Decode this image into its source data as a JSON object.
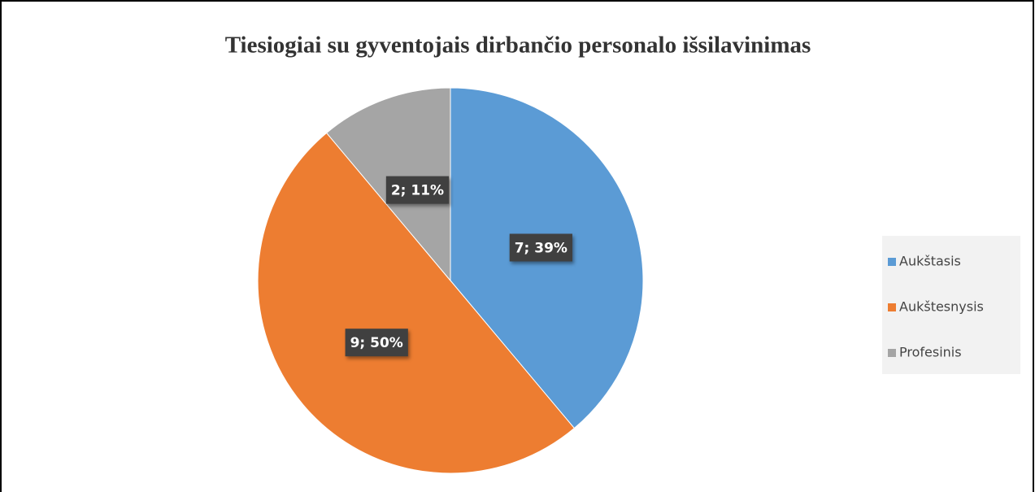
{
  "chart_data": {
    "type": "pie",
    "title": "Tiesiogiai su gyventojais dirbančio personalo išsilavinimas",
    "categories": [
      "Aukštasis",
      "Aukštesnysis",
      "Profesinis"
    ],
    "values": [
      7,
      9,
      2
    ],
    "value_labels": [
      "7; 39%",
      "9; 50%",
      "2; 11%"
    ],
    "colors": [
      "#5b9bd5",
      "#ed7d31",
      "#a5a5a5"
    ],
    "legend": "right"
  }
}
